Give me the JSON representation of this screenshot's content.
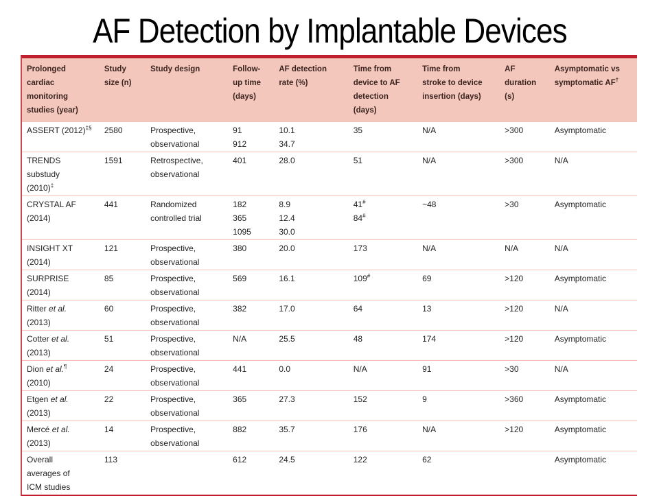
{
  "slide": {
    "title": "AF Detection by Implantable Devices"
  },
  "colors": {
    "top_border": "#bf1e2e",
    "side_border": "#cd4450",
    "header_bg": "#f4c7bc",
    "header_text": "#3b2420",
    "row_divider": "#f3c3ba",
    "body_text": "#1f1f1f"
  },
  "table": {
    "columns": [
      [
        "Prolonged",
        "cardiac",
        "monitoring",
        "studies (year)"
      ],
      [
        "Study",
        "size (n)"
      ],
      [
        "Study design"
      ],
      [
        "Follow-",
        "up time",
        "(days)"
      ],
      [
        "AF detection",
        "rate (%)"
      ],
      [
        "Time from",
        "device to AF",
        "detection",
        "(days)"
      ],
      [
        "Time from",
        "stroke to device",
        "insertion (days)"
      ],
      [
        "AF",
        "duration",
        "(s)"
      ],
      [
        "Asymptomatic vs",
        "symptomatic AF^{†}"
      ]
    ],
    "rows": [
      [
        [
          "ASSERT (2012)^{‡§}"
        ],
        [
          "2580"
        ],
        [
          "Prospective,",
          "observational"
        ],
        [
          "91",
          "912"
        ],
        [
          "10.1",
          "34.7"
        ],
        [
          "35"
        ],
        [
          "N/A"
        ],
        [
          ">300"
        ],
        [
          "Asymptomatic"
        ]
      ],
      [
        [
          "TRENDS",
          "substudy",
          "(2010)^{‡}"
        ],
        [
          "1591"
        ],
        [
          "Retrospective,",
          "observational"
        ],
        [
          "401"
        ],
        [
          "28.0"
        ],
        [
          "51"
        ],
        [
          "N/A"
        ],
        [
          ">300"
        ],
        [
          "N/A"
        ]
      ],
      [
        [
          "CRYSTAL AF",
          "(2014)"
        ],
        [
          "441"
        ],
        [
          "Randomized",
          "controlled trial"
        ],
        [
          "182",
          "365",
          "1095"
        ],
        [
          "8.9",
          "12.4",
          "30.0"
        ],
        [
          "41^{#}",
          "84^{#}"
        ],
        [
          "~48"
        ],
        [
          ">30"
        ],
        [
          "Asymptomatic"
        ]
      ],
      [
        [
          "INSIGHT XT",
          "(2014)"
        ],
        [
          "121"
        ],
        [
          "Prospective,",
          "observational"
        ],
        [
          "380"
        ],
        [
          "20.0"
        ],
        [
          "173"
        ],
        [
          "N/A"
        ],
        [
          "N/A"
        ],
        [
          "N/A"
        ]
      ],
      [
        [
          "SURPRISE",
          "(2014)"
        ],
        [
          "85"
        ],
        [
          "Prospective,",
          "observational"
        ],
        [
          "569"
        ],
        [
          "16.1"
        ],
        [
          "109^{#}"
        ],
        [
          "69"
        ],
        [
          ">120"
        ],
        [
          "Asymptomatic"
        ]
      ],
      [
        [
          "Ritter *et al.*",
          "(2013)"
        ],
        [
          "60"
        ],
        [
          "Prospective,",
          "observational"
        ],
        [
          "382"
        ],
        [
          "17.0"
        ],
        [
          "64"
        ],
        [
          "13"
        ],
        [
          ">120"
        ],
        [
          "N/A"
        ]
      ],
      [
        [
          "Cotter *et al.*",
          "(2013)"
        ],
        [
          "51"
        ],
        [
          "Prospective,",
          "observational"
        ],
        [
          "N/A"
        ],
        [
          "25.5"
        ],
        [
          "48"
        ],
        [
          "174"
        ],
        [
          ">120"
        ],
        [
          "Asymptomatic"
        ]
      ],
      [
        [
          "Dion *et al.*^{¶}",
          "(2010)"
        ],
        [
          "24"
        ],
        [
          "Prospective,",
          "observational"
        ],
        [
          "441"
        ],
        [
          "0.0"
        ],
        [
          "N/A"
        ],
        [
          "91"
        ],
        [
          ">30"
        ],
        [
          "N/A"
        ]
      ],
      [
        [
          "Etgen *et al.*",
          "(2013)"
        ],
        [
          "22"
        ],
        [
          "Prospective,",
          "observational"
        ],
        [
          "365"
        ],
        [
          "27.3"
        ],
        [
          "152"
        ],
        [
          "9"
        ],
        [
          ">360"
        ],
        [
          "Asymptomatic"
        ]
      ],
      [
        [
          "Mercé *et al.*",
          "(2013)"
        ],
        [
          "14"
        ],
        [
          "Prospective,",
          "observational"
        ],
        [
          "882"
        ],
        [
          "35.7"
        ],
        [
          "176"
        ],
        [
          "N/A"
        ],
        [
          ">120"
        ],
        [
          "Asymptomatic"
        ]
      ],
      [
        [
          "Overall",
          "averages of",
          "ICM studies"
        ],
        [
          "113"
        ],
        [],
        [
          "612"
        ],
        [
          "24.5"
        ],
        [
          "122"
        ],
        [
          "62"
        ],
        [],
        [
          "Asymptomatic"
        ]
      ]
    ]
  }
}
